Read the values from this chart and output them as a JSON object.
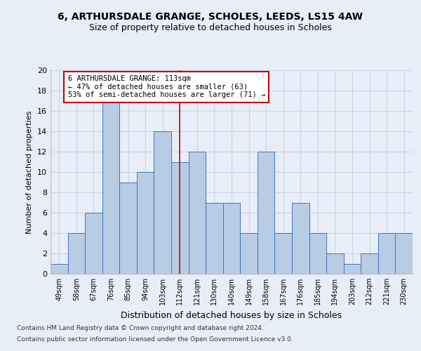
{
  "title_line1": "6, ARTHURSDALE GRANGE, SCHOLES, LEEDS, LS15 4AW",
  "title_line2": "Size of property relative to detached houses in Scholes",
  "xlabel": "Distribution of detached houses by size in Scholes",
  "ylabel": "Number of detached properties",
  "categories": [
    "49sqm",
    "58sqm",
    "67sqm",
    "76sqm",
    "85sqm",
    "94sqm",
    "103sqm",
    "112sqm",
    "121sqm",
    "130sqm",
    "140sqm",
    "149sqm",
    "158sqm",
    "167sqm",
    "176sqm",
    "185sqm",
    "194sqm",
    "203sqm",
    "212sqm",
    "221sqm",
    "230sqm"
  ],
  "values": [
    1,
    4,
    6,
    17,
    9,
    10,
    14,
    11,
    12,
    7,
    7,
    4,
    12,
    4,
    7,
    4,
    2,
    1,
    2,
    4,
    4
  ],
  "bar_color": "#b8cce4",
  "bar_edge_color": "#4472c4",
  "vline_x": 7.0,
  "vline_color": "#cc0000",
  "annotation_title": "6 ARTHURSDALE GRANGE: 113sqm",
  "annotation_line1": "← 47% of detached houses are smaller (63)",
  "annotation_line2": "53% of semi-detached houses are larger (71) →",
  "annotation_box_color": "#ffffff",
  "annotation_box_edgecolor": "#cc0000",
  "ylim": [
    0,
    20
  ],
  "yticks": [
    0,
    2,
    4,
    6,
    8,
    10,
    12,
    14,
    16,
    18,
    20
  ],
  "grid_color": "#c8d4e8",
  "footer_line1": "Contains HM Land Registry data © Crown copyright and database right 2024.",
  "footer_line2": "Contains public sector information licensed under the Open Government Licence v3.0.",
  "background_color": "#e8eef8"
}
